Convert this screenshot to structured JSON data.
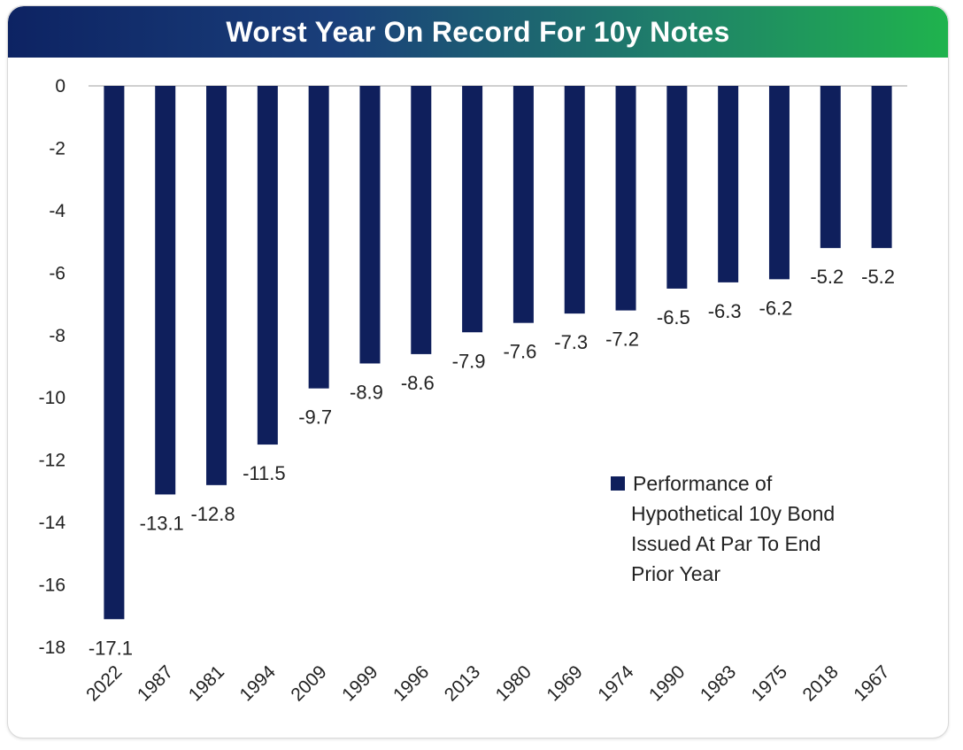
{
  "chart_data": {
    "type": "bar",
    "title": "Worst Year On Record For 10y Notes",
    "xlabel": "",
    "ylabel": "",
    "categories": [
      "2022",
      "1987",
      "1981",
      "1994",
      "2009",
      "1999",
      "1996",
      "2013",
      "1980",
      "1969",
      "1974",
      "1990",
      "1983",
      "1975",
      "2018",
      "1967"
    ],
    "series": [
      {
        "name": "Performance of Hypothetical 10y Bond Issued At Par To End Prior Year",
        "values": [
          -17.1,
          -13.1,
          -12.8,
          -11.5,
          -9.7,
          -8.9,
          -8.6,
          -7.9,
          -7.6,
          -7.3,
          -7.2,
          -6.5,
          -6.3,
          -6.2,
          -5.2,
          -5.2
        ],
        "color": "#0f1f5c"
      }
    ],
    "ylim": [
      -18,
      0
    ],
    "yticks": [
      "0",
      "-2",
      "-4",
      "-6",
      "-8",
      "-10",
      "-12",
      "-14",
      "-16",
      "-18"
    ],
    "data_labels": [
      "-17.1",
      "-13.1",
      "-12.8",
      "-11.5",
      "-9.7",
      "-8.9",
      "-8.6",
      "-7.9",
      "-7.6",
      "-7.3",
      "-7.2",
      "-6.5",
      "-6.3",
      "-6.2",
      "-5.2",
      "-5.2"
    ],
    "legend": {
      "position": "lower-right",
      "lines": [
        "Performance of",
        "Hypothetical 10y Bond",
        "Issued At Par To End",
        "Prior Year"
      ]
    },
    "grid": false
  }
}
